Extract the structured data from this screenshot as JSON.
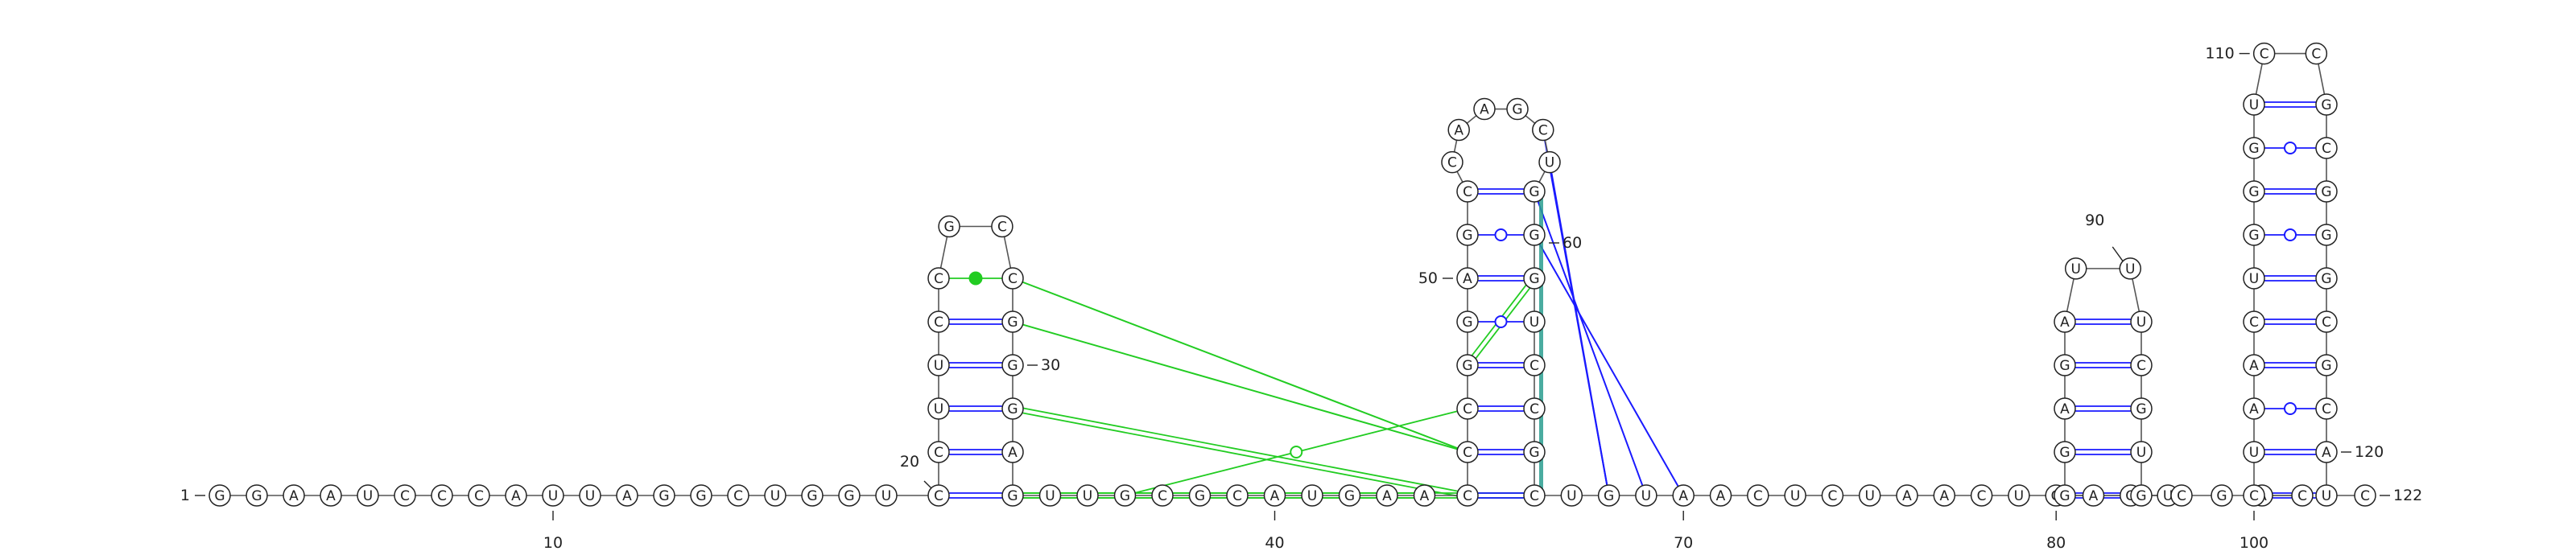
{
  "diagram": {
    "sequence": "GGAAUCCCAUUAGGCUGGUCCUUCCGCCGGGAGUUGCGCAUGAACCCGGAGCCAAGCUGGGUCCGCUGUAACUCUAACUGAGUGGAGAUUUCGUGCGACCUAACUGGGUCCGCGGGCGCAUC",
    "numbering": [
      {
        "pos": 1,
        "label": "1"
      },
      {
        "pos": 10,
        "label": "10"
      },
      {
        "pos": 20,
        "label": "20"
      },
      {
        "pos": 30,
        "label": "30"
      },
      {
        "pos": 40,
        "label": "40"
      },
      {
        "pos": 50,
        "label": "50"
      },
      {
        "pos": 60,
        "label": "60"
      },
      {
        "pos": 70,
        "label": "70"
      },
      {
        "pos": 80,
        "label": "80"
      },
      {
        "pos": 90,
        "label": "90"
      },
      {
        "pos": 100,
        "label": "100"
      },
      {
        "pos": 110,
        "label": "110"
      },
      {
        "pos": 120,
        "label": "120"
      },
      {
        "pos": 122,
        "label": "122"
      }
    ],
    "stems": [
      {
        "id": "hairpin-1",
        "pairs": [
          [
            20,
            33
          ],
          [
            21,
            32
          ],
          [
            22,
            31
          ],
          [
            23,
            30
          ],
          [
            24,
            29
          ],
          [
            25,
            28
          ]
        ],
        "pair_types": [
          "cis-WC",
          "cis-WC",
          "cis-WC",
          "cis-WC",
          "cis-WC",
          "non-canonical"
        ],
        "loop": [
          26,
          27
        ]
      },
      {
        "id": "hairpin-2",
        "pairs": [
          [
            45,
            66
          ],
          [
            46,
            65
          ],
          [
            47,
            64
          ],
          [
            48,
            63
          ],
          [
            49,
            62
          ],
          [
            50,
            61
          ],
          [
            51,
            60
          ],
          [
            52,
            59
          ]
        ],
        "pair_types": [
          "cis-WC",
          "cis-WC",
          "cis-WC",
          "cis-WC",
          "wobble",
          "cis-WC",
          "wobble",
          "cis-WC"
        ],
        "loop": [
          53,
          54,
          55,
          56,
          57,
          58
        ]
      },
      {
        "id": "hairpin-3",
        "pairs": [
          [
            84,
            95
          ],
          [
            85,
            94
          ],
          [
            86,
            93
          ],
          [
            87,
            92
          ],
          [
            88,
            91
          ]
        ],
        "pair_types": [
          "cis-WC",
          "cis-WC",
          "cis-WC",
          "cis-WC",
          "cis-WC"
        ],
        "loop": [
          89,
          90
        ]
      },
      {
        "id": "hairpin-4",
        "pairs": [
          [
            100,
            121
          ],
          [
            101,
            120
          ],
          [
            102,
            119
          ],
          [
            103,
            118
          ],
          [
            104,
            117
          ],
          [
            105,
            116
          ],
          [
            106,
            115
          ],
          [
            107,
            114
          ],
          [
            108,
            113
          ],
          [
            109,
            112
          ]
        ],
        "pair_types": [
          "cis-WC",
          "cis-WC",
          "wobble",
          "cis-WC",
          "cis-WC",
          "cis-WC",
          "wobble",
          "cis-WC",
          "wobble",
          "cis-WC"
        ],
        "loop": [
          110,
          111
        ]
      }
    ],
    "tertiary": [
      {
        "a": 28,
        "b": 46,
        "color": "#22cc22",
        "style": "single"
      },
      {
        "a": 29,
        "b": 46,
        "color": "#22cc22",
        "style": "single"
      },
      {
        "a": 31,
        "b": 45,
        "color": "#22cc22",
        "style": "double"
      },
      {
        "a": 33,
        "b": 44,
        "color": "#22cc22",
        "style": "double"
      },
      {
        "a": 33,
        "b": 66,
        "color": "#22cc22",
        "style": "double"
      },
      {
        "a": 36,
        "b": 47,
        "color": "#22cc22",
        "style": "circle"
      },
      {
        "a": 48,
        "b": 61,
        "color": "#22cc22",
        "style": "double"
      },
      {
        "a": 57,
        "b": 68,
        "color": "#1a1aff",
        "style": "single"
      },
      {
        "a": 58,
        "b": 68,
        "color": "#1a1aff",
        "style": "single"
      },
      {
        "a": 59,
        "b": 69,
        "color": "#1a1aff",
        "style": "single"
      },
      {
        "a": 60,
        "b": 70,
        "color": "#1a1aff",
        "style": "single"
      }
    ],
    "colors": {
      "backbone": "#555555",
      "nucleotide_outline": "#222222",
      "canonical_pair": "#1a1aff",
      "tertiary_pair": "#22cc22",
      "stacking": "#2a9d8f",
      "label": "#222222"
    }
  }
}
